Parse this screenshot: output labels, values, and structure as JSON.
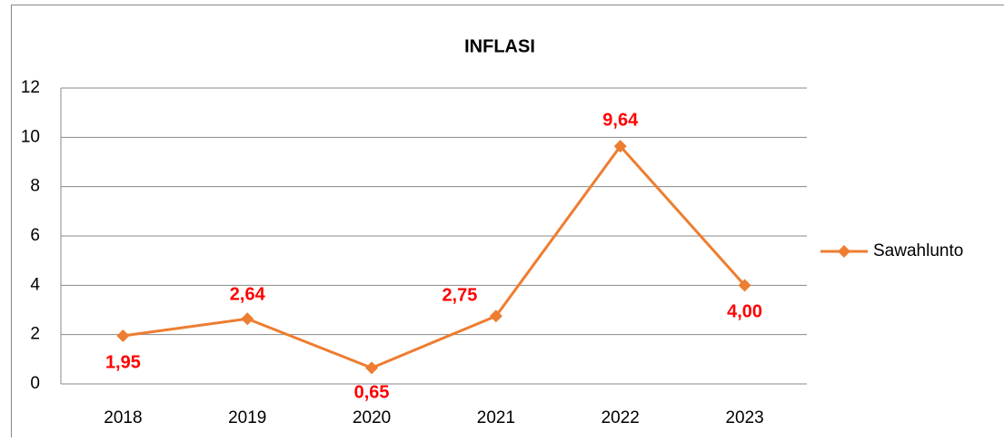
{
  "chart_data": {
    "type": "line",
    "title": "INFLASI",
    "categories": [
      "2018",
      "2019",
      "2020",
      "2021",
      "2022",
      "2023"
    ],
    "series": [
      {
        "name": "Sawahlunto",
        "color": "#ed7d31",
        "values": [
          1.95,
          2.64,
          0.65,
          2.75,
          9.64,
          4.0
        ],
        "value_labels": [
          "1,95",
          "2,64",
          "0,65",
          "2,75",
          "9,64",
          "4,00"
        ]
      }
    ],
    "label_color": "#ff0000",
    "ylim": [
      0,
      12
    ],
    "yticks": [
      0,
      2,
      4,
      6,
      8,
      10,
      12
    ],
    "grid": true,
    "legend": "right"
  }
}
